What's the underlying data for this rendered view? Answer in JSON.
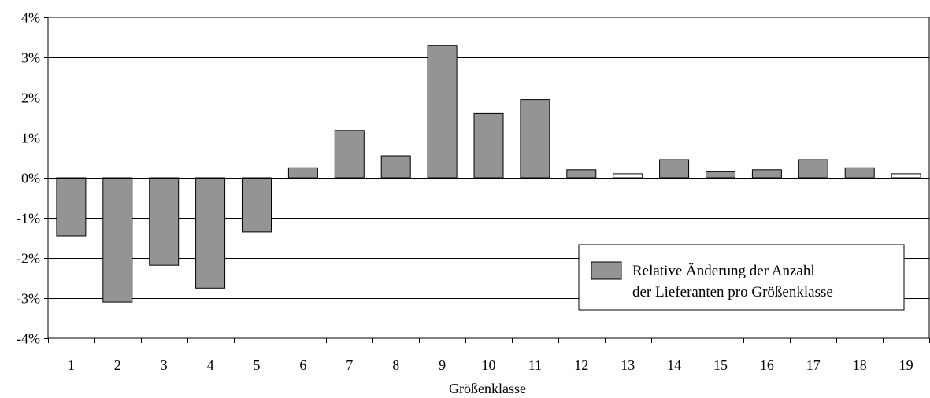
{
  "chart_data": {
    "type": "bar",
    "title": "",
    "xlabel": "Größenklasse",
    "ylabel": "",
    "categories": [
      "1",
      "2",
      "3",
      "4",
      "5",
      "6",
      "7",
      "8",
      "9",
      "10",
      "11",
      "12",
      "13",
      "14",
      "15",
      "16",
      "17",
      "18",
      "19"
    ],
    "series": [
      {
        "name": "Relative Änderung der Anzahl der Lieferanten pro Größenklasse",
        "values": [
          -1.45,
          -3.1,
          -2.18,
          -2.75,
          -1.35,
          0.25,
          1.18,
          0.55,
          3.3,
          1.6,
          1.95,
          0.2,
          0.1,
          0.45,
          0.15,
          0.2,
          0.45,
          0.25,
          0.1
        ]
      }
    ],
    "ylim": [
      -4,
      4
    ],
    "yticks": [
      -4,
      -3,
      -2,
      -1,
      0,
      1,
      2,
      3,
      4
    ],
    "ytick_labels": [
      "-4%",
      "-3%",
      "-2%",
      "-1%",
      "0%",
      "1%",
      "2%",
      "3%",
      "4%"
    ],
    "grid": true,
    "legend": {
      "placement": "bottom-right",
      "lines": [
        "Relative Änderung der Anzahl",
        "der Lieferanten pro Größenklasse"
      ]
    },
    "colors": {
      "bar_fill": "#949494",
      "bar_fill_small": "#ffffff",
      "bar_stroke": "#000000",
      "grid": "#000000"
    }
  }
}
